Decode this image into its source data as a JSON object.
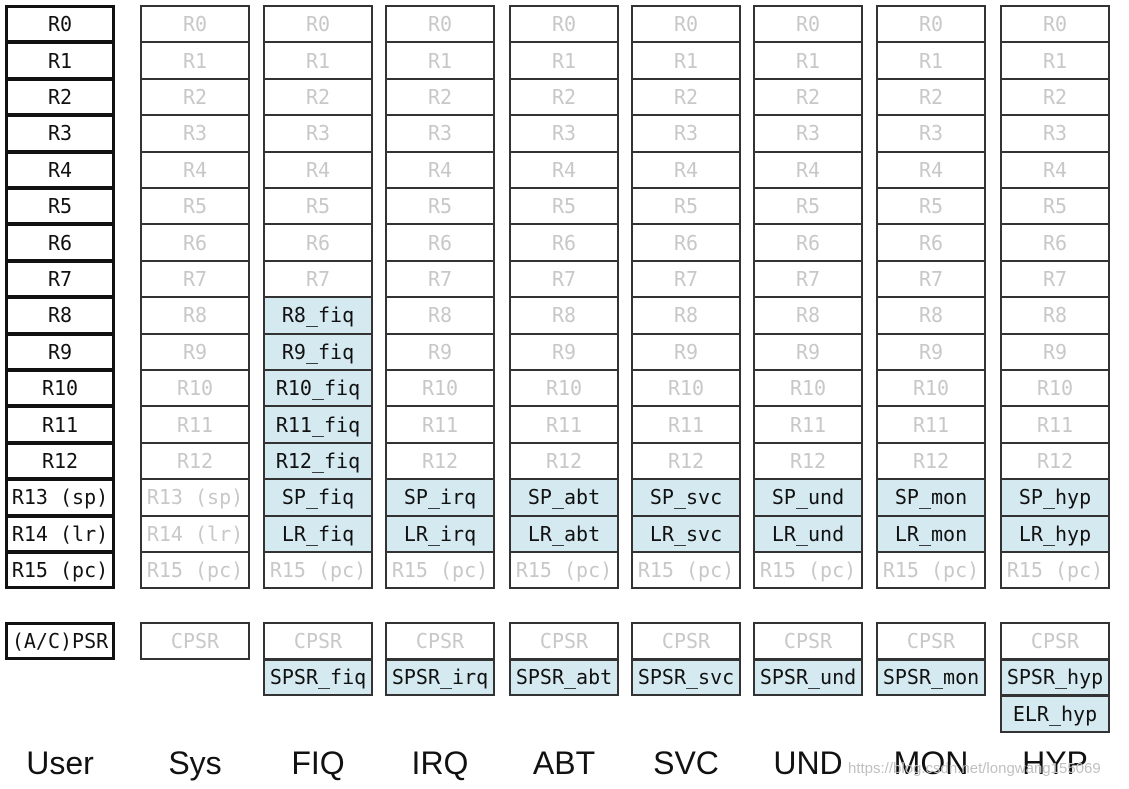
{
  "columns": [
    {
      "name": "User",
      "registers": [
        {
          "text": "R0",
          "style": "user"
        },
        {
          "text": "R1",
          "style": "user"
        },
        {
          "text": "R2",
          "style": "user"
        },
        {
          "text": "R3",
          "style": "user"
        },
        {
          "text": "R4",
          "style": "user"
        },
        {
          "text": "R5",
          "style": "user"
        },
        {
          "text": "R6",
          "style": "user"
        },
        {
          "text": "R7",
          "style": "user"
        },
        {
          "text": "R8",
          "style": "user"
        },
        {
          "text": "R9",
          "style": "user"
        },
        {
          "text": "R10",
          "style": "user"
        },
        {
          "text": "R11",
          "style": "user"
        },
        {
          "text": "R12",
          "style": "user"
        },
        {
          "text": "R13 (sp)",
          "style": "user"
        },
        {
          "text": "R14 (lr)",
          "style": "user"
        },
        {
          "text": "R15 (pc)",
          "style": "user"
        }
      ],
      "psr": [
        {
          "text": "(A/C)PSR",
          "style": "user"
        }
      ]
    },
    {
      "name": "Sys",
      "registers": [
        {
          "text": "R0",
          "style": "shared"
        },
        {
          "text": "R1",
          "style": "shared"
        },
        {
          "text": "R2",
          "style": "shared"
        },
        {
          "text": "R3",
          "style": "shared"
        },
        {
          "text": "R4",
          "style": "shared"
        },
        {
          "text": "R5",
          "style": "shared"
        },
        {
          "text": "R6",
          "style": "shared"
        },
        {
          "text": "R7",
          "style": "shared"
        },
        {
          "text": "R8",
          "style": "shared"
        },
        {
          "text": "R9",
          "style": "shared"
        },
        {
          "text": "R10",
          "style": "shared"
        },
        {
          "text": "R11",
          "style": "shared"
        },
        {
          "text": "R12",
          "style": "shared"
        },
        {
          "text": "R13 (sp)",
          "style": "shared"
        },
        {
          "text": "R14 (lr)",
          "style": "shared"
        },
        {
          "text": "R15 (pc)",
          "style": "shared"
        }
      ],
      "psr": [
        {
          "text": "CPSR",
          "style": "shared"
        }
      ]
    },
    {
      "name": "FIQ",
      "registers": [
        {
          "text": "R0",
          "style": "shared"
        },
        {
          "text": "R1",
          "style": "shared"
        },
        {
          "text": "R2",
          "style": "shared"
        },
        {
          "text": "R3",
          "style": "shared"
        },
        {
          "text": "R4",
          "style": "shared"
        },
        {
          "text": "R5",
          "style": "shared"
        },
        {
          "text": "R6",
          "style": "shared"
        },
        {
          "text": "R7",
          "style": "shared"
        },
        {
          "text": "R8_fiq",
          "style": "banked"
        },
        {
          "text": "R9_fiq",
          "style": "banked"
        },
        {
          "text": "R10_fiq",
          "style": "banked"
        },
        {
          "text": "R11_fiq",
          "style": "banked"
        },
        {
          "text": "R12_fiq",
          "style": "banked"
        },
        {
          "text": "SP_fiq",
          "style": "banked"
        },
        {
          "text": "LR_fiq",
          "style": "banked"
        },
        {
          "text": "R15 (pc)",
          "style": "shared"
        }
      ],
      "psr": [
        {
          "text": "CPSR",
          "style": "shared"
        },
        {
          "text": "SPSR_fiq",
          "style": "banked"
        }
      ]
    },
    {
      "name": "IRQ",
      "registers": [
        {
          "text": "R0",
          "style": "shared"
        },
        {
          "text": "R1",
          "style": "shared"
        },
        {
          "text": "R2",
          "style": "shared"
        },
        {
          "text": "R3",
          "style": "shared"
        },
        {
          "text": "R4",
          "style": "shared"
        },
        {
          "text": "R5",
          "style": "shared"
        },
        {
          "text": "R6",
          "style": "shared"
        },
        {
          "text": "R7",
          "style": "shared"
        },
        {
          "text": "R8",
          "style": "shared"
        },
        {
          "text": "R9",
          "style": "shared"
        },
        {
          "text": "R10",
          "style": "shared"
        },
        {
          "text": "R11",
          "style": "shared"
        },
        {
          "text": "R12",
          "style": "shared"
        },
        {
          "text": "SP_irq",
          "style": "banked"
        },
        {
          "text": "LR_irq",
          "style": "banked"
        },
        {
          "text": "R15 (pc)",
          "style": "shared"
        }
      ],
      "psr": [
        {
          "text": "CPSR",
          "style": "shared"
        },
        {
          "text": "SPSR_irq",
          "style": "banked"
        }
      ]
    },
    {
      "name": "ABT",
      "registers": [
        {
          "text": "R0",
          "style": "shared"
        },
        {
          "text": "R1",
          "style": "shared"
        },
        {
          "text": "R2",
          "style": "shared"
        },
        {
          "text": "R3",
          "style": "shared"
        },
        {
          "text": "R4",
          "style": "shared"
        },
        {
          "text": "R5",
          "style": "shared"
        },
        {
          "text": "R6",
          "style": "shared"
        },
        {
          "text": "R7",
          "style": "shared"
        },
        {
          "text": "R8",
          "style": "shared"
        },
        {
          "text": "R9",
          "style": "shared"
        },
        {
          "text": "R10",
          "style": "shared"
        },
        {
          "text": "R11",
          "style": "shared"
        },
        {
          "text": "R12",
          "style": "shared"
        },
        {
          "text": "SP_abt",
          "style": "banked"
        },
        {
          "text": "LR_abt",
          "style": "banked"
        },
        {
          "text": "R15 (pc)",
          "style": "shared"
        }
      ],
      "psr": [
        {
          "text": "CPSR",
          "style": "shared"
        },
        {
          "text": "SPSR_abt",
          "style": "banked"
        }
      ]
    },
    {
      "name": "SVC",
      "registers": [
        {
          "text": "R0",
          "style": "shared"
        },
        {
          "text": "R1",
          "style": "shared"
        },
        {
          "text": "R2",
          "style": "shared"
        },
        {
          "text": "R3",
          "style": "shared"
        },
        {
          "text": "R4",
          "style": "shared"
        },
        {
          "text": "R5",
          "style": "shared"
        },
        {
          "text": "R6",
          "style": "shared"
        },
        {
          "text": "R7",
          "style": "shared"
        },
        {
          "text": "R8",
          "style": "shared"
        },
        {
          "text": "R9",
          "style": "shared"
        },
        {
          "text": "R10",
          "style": "shared"
        },
        {
          "text": "R11",
          "style": "shared"
        },
        {
          "text": "R12",
          "style": "shared"
        },
        {
          "text": "SP_svc",
          "style": "banked"
        },
        {
          "text": "LR_svc",
          "style": "banked"
        },
        {
          "text": "R15 (pc)",
          "style": "shared"
        }
      ],
      "psr": [
        {
          "text": "CPSR",
          "style": "shared"
        },
        {
          "text": "SPSR_svc",
          "style": "banked"
        }
      ]
    },
    {
      "name": "UND",
      "registers": [
        {
          "text": "R0",
          "style": "shared"
        },
        {
          "text": "R1",
          "style": "shared"
        },
        {
          "text": "R2",
          "style": "shared"
        },
        {
          "text": "R3",
          "style": "shared"
        },
        {
          "text": "R4",
          "style": "shared"
        },
        {
          "text": "R5",
          "style": "shared"
        },
        {
          "text": "R6",
          "style": "shared"
        },
        {
          "text": "R7",
          "style": "shared"
        },
        {
          "text": "R8",
          "style": "shared"
        },
        {
          "text": "R9",
          "style": "shared"
        },
        {
          "text": "R10",
          "style": "shared"
        },
        {
          "text": "R11",
          "style": "shared"
        },
        {
          "text": "R12",
          "style": "shared"
        },
        {
          "text": "SP_und",
          "style": "banked"
        },
        {
          "text": "LR_und",
          "style": "banked"
        },
        {
          "text": "R15 (pc)",
          "style": "shared"
        }
      ],
      "psr": [
        {
          "text": "CPSR",
          "style": "shared"
        },
        {
          "text": "SPSR_und",
          "style": "banked"
        }
      ]
    },
    {
      "name": "MON",
      "registers": [
        {
          "text": "R0",
          "style": "shared"
        },
        {
          "text": "R1",
          "style": "shared"
        },
        {
          "text": "R2",
          "style": "shared"
        },
        {
          "text": "R3",
          "style": "shared"
        },
        {
          "text": "R4",
          "style": "shared"
        },
        {
          "text": "R5",
          "style": "shared"
        },
        {
          "text": "R6",
          "style": "shared"
        },
        {
          "text": "R7",
          "style": "shared"
        },
        {
          "text": "R8",
          "style": "shared"
        },
        {
          "text": "R9",
          "style": "shared"
        },
        {
          "text": "R10",
          "style": "shared"
        },
        {
          "text": "R11",
          "style": "shared"
        },
        {
          "text": "R12",
          "style": "shared"
        },
        {
          "text": "SP_mon",
          "style": "banked"
        },
        {
          "text": "LR_mon",
          "style": "banked"
        },
        {
          "text": "R15 (pc)",
          "style": "shared"
        }
      ],
      "psr": [
        {
          "text": "CPSR",
          "style": "shared"
        },
        {
          "text": "SPSR_mon",
          "style": "banked"
        }
      ]
    },
    {
      "name": "HYP",
      "registers": [
        {
          "text": "R0",
          "style": "shared"
        },
        {
          "text": "R1",
          "style": "shared"
        },
        {
          "text": "R2",
          "style": "shared"
        },
        {
          "text": "R3",
          "style": "shared"
        },
        {
          "text": "R4",
          "style": "shared"
        },
        {
          "text": "R5",
          "style": "shared"
        },
        {
          "text": "R6",
          "style": "shared"
        },
        {
          "text": "R7",
          "style": "shared"
        },
        {
          "text": "R8",
          "style": "shared"
        },
        {
          "text": "R9",
          "style": "shared"
        },
        {
          "text": "R10",
          "style": "shared"
        },
        {
          "text": "R11",
          "style": "shared"
        },
        {
          "text": "R12",
          "style": "shared"
        },
        {
          "text": "SP_hyp",
          "style": "banked"
        },
        {
          "text": "LR_hyp",
          "style": "banked"
        },
        {
          "text": "R15 (pc)",
          "style": "shared"
        }
      ],
      "psr": [
        {
          "text": "CPSR",
          "style": "shared"
        },
        {
          "text": "SPSR_hyp",
          "style": "banked"
        },
        {
          "text": "ELR_hyp",
          "style": "banked"
        }
      ]
    }
  ],
  "watermark": "https://blog.csdn.net/longwang155069"
}
